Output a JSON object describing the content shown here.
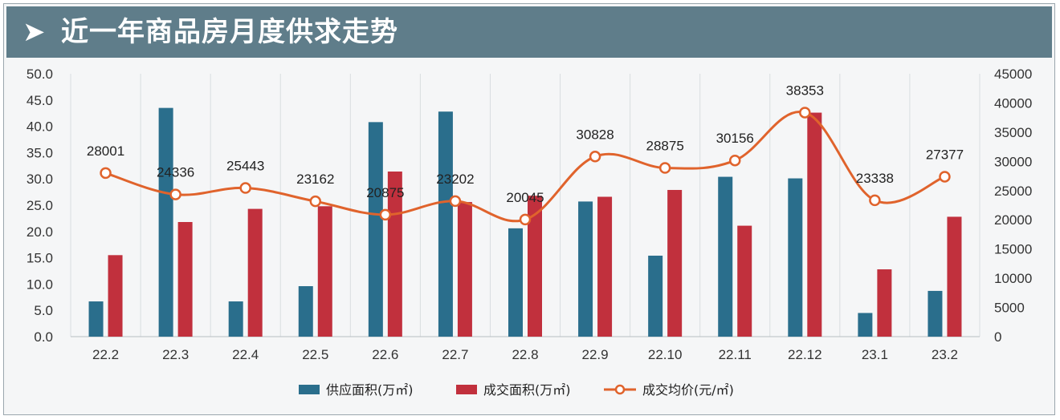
{
  "header": {
    "title": "近一年商品房月度供求走势",
    "arrow_icon": "chevron-right-icon"
  },
  "colors": {
    "supply": "#2a6e8c",
    "transaction": "#c1303d",
    "price": "#e0632c",
    "header_bg": "#5f7d8a",
    "grid": "#d9dde0"
  },
  "chart_data": {
    "type": "bar",
    "categories": [
      "22.2",
      "22.3",
      "22.4",
      "22.5",
      "22.6",
      "22.7",
      "22.8",
      "22.9",
      "22.10",
      "22.11",
      "22.12",
      "23.1",
      "23.2"
    ],
    "series": [
      {
        "name": "供应面积(万㎡)",
        "type": "bar",
        "axis": "left",
        "values": [
          6.7,
          43.5,
          6.7,
          9.6,
          40.8,
          42.8,
          20.6,
          25.7,
          15.4,
          30.4,
          30.1,
          4.5,
          8.7
        ]
      },
      {
        "name": "成交面积(万㎡)",
        "type": "bar",
        "axis": "left",
        "values": [
          15.5,
          21.8,
          24.3,
          24.8,
          31.4,
          25.6,
          26.8,
          26.6,
          27.9,
          21.1,
          42.6,
          12.8,
          22.8
        ]
      },
      {
        "name": "成交均价(元/㎡)",
        "type": "line",
        "axis": "right",
        "values": [
          28001,
          24336,
          25443,
          23162,
          20875,
          23202,
          20045,
          30828,
          28875,
          30156,
          38353,
          23338,
          27377
        ],
        "labels": [
          "28001",
          "24336",
          "25443",
          "23162",
          "20875",
          "23202",
          "20045",
          "30828",
          "28875",
          "30156",
          "38353",
          "23338",
          "27377"
        ]
      }
    ],
    "y_left": {
      "range": [
        0,
        50
      ],
      "ticks": [
        "0.0",
        "5.0",
        "10.0",
        "15.0",
        "20.0",
        "25.0",
        "30.0",
        "35.0",
        "40.0",
        "45.0",
        "50.0"
      ]
    },
    "y_right": {
      "range": [
        0,
        45000
      ],
      "ticks": [
        "0",
        "5000",
        "10000",
        "15000",
        "20000",
        "25000",
        "30000",
        "35000",
        "40000",
        "45000"
      ]
    },
    "grid": "vertical",
    "legend": [
      "供应面积(万㎡)",
      "成交面积(万㎡)",
      "成交均价(元/㎡)"
    ],
    "legend_position": "bottom"
  }
}
